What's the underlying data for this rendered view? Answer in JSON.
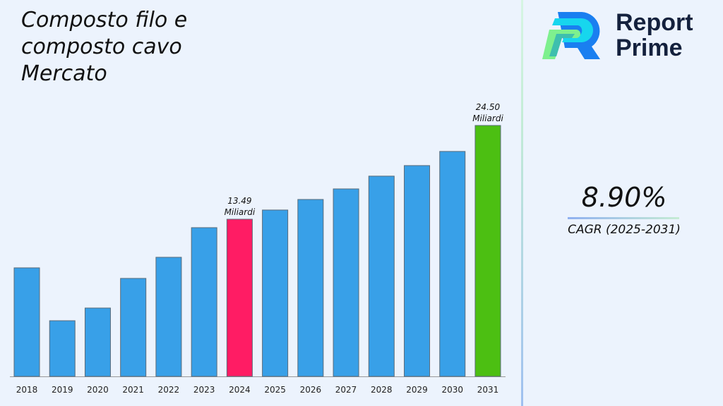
{
  "title": "Composto filo e composto cavo Mercato",
  "logo": {
    "line1": "Report",
    "line2": "Prime"
  },
  "cagr": {
    "value": "8.90%",
    "label": "CAGR (2025-2031)"
  },
  "colors": {
    "default_bar": "#38a0e8",
    "highlight_2024": "#ff1c64",
    "highlight_2031": "#4cbf12"
  },
  "chart_data": {
    "type": "bar",
    "title": "Composto filo e composto cavo Mercato",
    "categories": [
      "2018",
      "2019",
      "2020",
      "2021",
      "2022",
      "2023",
      "2024",
      "2025",
      "2026",
      "2027",
      "2028",
      "2029",
      "2030",
      "2031"
    ],
    "values": [
      7.78,
      1.57,
      3.06,
      6.54,
      9.02,
      12.5,
      13.49,
      14.57,
      15.81,
      17.05,
      18.55,
      19.79,
      21.45,
      24.5
    ],
    "data_labels": [
      {
        "category": "2024",
        "line1": "13.49",
        "line2": "Miliardi"
      },
      {
        "category": "2031",
        "line1": "24.50",
        "line2": "Miliardi"
      }
    ],
    "grid": false,
    "legend": "none"
  }
}
